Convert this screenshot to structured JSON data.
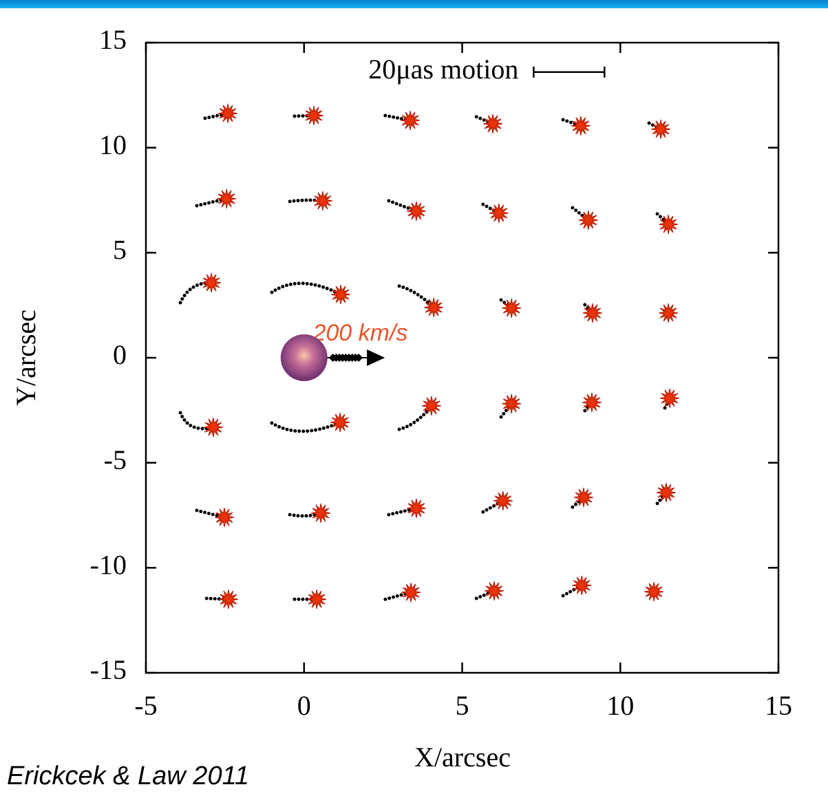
{
  "chart_data": {
    "type": "scatter",
    "xlabel": "X/arcsec",
    "ylabel": "Y/arcsec",
    "xlim": [
      -5,
      15
    ],
    "ylim": [
      -15,
      15
    ],
    "xticks": [
      -5,
      0,
      5,
      10,
      15
    ],
    "yticks": [
      -15,
      -10,
      -5,
      0,
      5,
      10,
      15
    ],
    "series": [
      {
        "color": "#e8330c",
        "x": [
          -2.41,
          0.31,
          3.36,
          5.97,
          8.75,
          11.28,
          -2.45,
          0.59,
          3.55,
          6.16,
          8.99,
          11.52,
          -2.93,
          1.16,
          4.1,
          6.56,
          9.12,
          11.52,
          -2.87,
          1.14,
          4.03,
          6.56,
          9.1,
          11.56,
          -2.52,
          0.53,
          3.55,
          6.29,
          8.84,
          11.45,
          -2.39,
          0.4,
          3.38,
          6.01,
          8.78,
          11.06
        ],
        "y": [
          11.63,
          11.53,
          11.3,
          11.14,
          11.04,
          10.88,
          7.57,
          7.47,
          6.98,
          6.88,
          6.55,
          6.35,
          3.57,
          3.01,
          2.39,
          2.36,
          2.13,
          2.13,
          -3.31,
          -3.08,
          -2.29,
          -2.19,
          -2.13,
          -1.93,
          -7.6,
          -7.4,
          -7.17,
          -6.81,
          -6.65,
          -6.42,
          -11.5,
          -11.5,
          -11.17,
          -11.1,
          -10.84,
          -11.14
        ]
      }
    ],
    "trails": [
      {
        "x": [
          -3.13,
          -2.41
        ],
        "y": [
          11.4,
          11.63
        ]
      },
      {
        "x": [
          -0.3,
          0.31
        ],
        "y": [
          11.5,
          11.53
        ]
      },
      {
        "x": [
          2.57,
          3.36
        ],
        "y": [
          11.53,
          11.3
        ]
      },
      {
        "x": [
          5.45,
          5.97
        ],
        "y": [
          11.47,
          11.14
        ]
      },
      {
        "x": [
          8.19,
          8.75
        ],
        "y": [
          11.33,
          11.04
        ]
      },
      {
        "x": [
          10.91,
          11.28
        ],
        "y": [
          11.17,
          10.88
        ]
      },
      {
        "x": [
          -3.39,
          -2.45
        ],
        "y": [
          7.24,
          7.57
        ]
      },
      {
        "x": [
          -0.45,
          0.07,
          0.59
        ],
        "y": [
          7.44,
          7.5,
          7.47
        ]
      },
      {
        "x": [
          2.68,
          3.55
        ],
        "y": [
          7.47,
          6.98
        ]
      },
      {
        "x": [
          5.66,
          6.16
        ],
        "y": [
          7.3,
          6.88
        ]
      },
      {
        "x": [
          8.49,
          8.99
        ],
        "y": [
          7.14,
          6.55
        ]
      },
      {
        "x": [
          11.17,
          11.52
        ],
        "y": [
          6.85,
          6.35
        ]
      },
      {
        "x": [
          -3.91,
          -3.52,
          -2.93
        ],
        "y": [
          2.62,
          3.34,
          3.57
        ]
      },
      {
        "x": [
          -1.02,
          -0.04,
          1.16
        ],
        "y": [
          3.11,
          3.54,
          3.01
        ]
      },
      {
        "x": [
          3.01,
          3.55,
          4.1
        ],
        "y": [
          3.41,
          3.05,
          2.39
        ]
      },
      {
        "x": [
          6.23,
          6.56
        ],
        "y": [
          2.75,
          2.36
        ]
      },
      {
        "x": [
          8.88,
          9.12
        ],
        "y": [
          2.52,
          2.13
        ]
      },
      {
        "x": [
          -3.91,
          -3.52,
          -2.87
        ],
        "y": [
          -2.62,
          -3.28,
          -3.31
        ]
      },
      {
        "x": [
          -1.02,
          -0.04,
          1.14
        ],
        "y": [
          -3.11,
          -3.5,
          -3.08
        ]
      },
      {
        "x": [
          3.01,
          3.55,
          4.03
        ],
        "y": [
          -3.41,
          -3.01,
          -2.29
        ]
      },
      {
        "x": [
          6.23,
          6.56
        ],
        "y": [
          -2.82,
          -2.19
        ]
      },
      {
        "x": [
          8.88,
          9.1
        ],
        "y": [
          -2.52,
          -2.13
        ]
      },
      {
        "x": [
          11.41,
          11.56
        ],
        "y": [
          -2.39,
          -1.93
        ]
      },
      {
        "x": [
          -3.39,
          -2.52
        ],
        "y": [
          -7.27,
          -7.6
        ]
      },
      {
        "x": [
          -0.45,
          0.07,
          0.53
        ],
        "y": [
          -7.47,
          -7.53,
          -7.4
        ]
      },
      {
        "x": [
          2.68,
          3.55
        ],
        "y": [
          -7.47,
          -7.17
        ]
      },
      {
        "x": [
          5.66,
          6.29
        ],
        "y": [
          -7.34,
          -6.81
        ]
      },
      {
        "x": [
          8.49,
          8.84
        ],
        "y": [
          -7.11,
          -6.65
        ]
      },
      {
        "x": [
          11.17,
          11.45
        ],
        "y": [
          -6.94,
          -6.42
        ]
      },
      {
        "x": [
          -3.08,
          -2.39
        ],
        "y": [
          -11.46,
          -11.5
        ]
      },
      {
        "x": [
          -0.3,
          0.4
        ],
        "y": [
          -11.5,
          -11.5
        ]
      },
      {
        "x": [
          2.57,
          3.38
        ],
        "y": [
          -11.5,
          -11.17
        ]
      },
      {
        "x": [
          5.45,
          6.01
        ],
        "y": [
          -11.46,
          -11.1
        ]
      },
      {
        "x": [
          8.19,
          8.78
        ],
        "y": [
          -11.33,
          -10.84
        ]
      }
    ],
    "lens": {
      "x": 0,
      "y": 0
    },
    "velocity": {
      "label": "200 km/s",
      "x": [
        0,
        2.25
      ],
      "y": [
        0,
        0
      ]
    },
    "scale_bar": {
      "label": "20μas motion",
      "x": [
        7.26,
        9.5
      ],
      "y": 13.6
    }
  },
  "citation": "Erickcek & Law 2011"
}
